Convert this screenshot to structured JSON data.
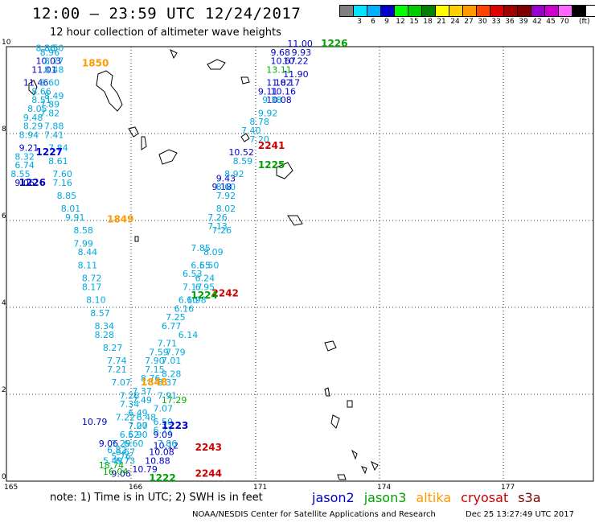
{
  "header": {
    "title": "12:00 — 23:59 UTC 12/24/2017",
    "subtitle": "12 hour collection of altimeter wave heights"
  },
  "legend": {
    "colors": [
      "#808080",
      "#00e5ff",
      "#00b0ff",
      "#0000cc",
      "#00ff00",
      "#00cc00",
      "#008000",
      "#ffff00",
      "#ffd000",
      "#ff9900",
      "#ff4400",
      "#e00000",
      "#a00000",
      "#800000",
      "#9900cc",
      "#cc00cc",
      "#ff66ff",
      "#000000"
    ],
    "labels": [
      "3",
      "6",
      "9",
      "12",
      "15",
      "18",
      "21",
      "24",
      "27",
      "30",
      "33",
      "36",
      "39",
      "42",
      "45",
      "70"
    ],
    "unit": "(ft)"
  },
  "map": {
    "lon_ticks": [
      "165",
      "166",
      "171",
      "174",
      "177"
    ],
    "lat_ticks": [
      "0",
      "2",
      "4",
      "6",
      "8",
      "10"
    ],
    "lon_range": [
      165,
      179
    ],
    "lat_range": [
      0,
      10
    ]
  },
  "chart_data": {
    "type": "scatter",
    "title": "12:00 — 23:59 UTC 12/24/2017",
    "subtitle": "12 hour collection of altimeter wave heights",
    "x_axis": "longitude",
    "y_axis": "latitude",
    "units": "ft",
    "time_labels": [
      {
        "text": "1226",
        "sat": "jason3",
        "lon": 172.5,
        "lat": 10.0
      },
      {
        "text": "1850",
        "sat": "altika",
        "lon": 166.8,
        "lat": 9.55
      },
      {
        "text": "1227",
        "sat": "jason2",
        "lon": 165.7,
        "lat": 7.5
      },
      {
        "text": "1226",
        "sat": "jason2",
        "lon": 165.3,
        "lat": 6.8
      },
      {
        "text": "2241",
        "sat": "cryosat",
        "lon": 171.0,
        "lat": 7.65
      },
      {
        "text": "1225",
        "sat": "jason3",
        "lon": 171.0,
        "lat": 7.2
      },
      {
        "text": "1849",
        "sat": "altika",
        "lon": 167.4,
        "lat": 5.95
      },
      {
        "text": "2242",
        "sat": "cryosat",
        "lon": 169.9,
        "lat": 4.25
      },
      {
        "text": "1224",
        "sat": "jason3",
        "lon": 169.4,
        "lat": 4.2
      },
      {
        "text": "1848",
        "sat": "altika",
        "lon": 168.2,
        "lat": 2.2
      },
      {
        "text": "1223",
        "sat": "jason2",
        "lon": 168.7,
        "lat": 1.2
      },
      {
        "text": "2243",
        "sat": "cryosat",
        "lon": 169.5,
        "lat": 0.7
      },
      {
        "text": "2244",
        "sat": "cryosat",
        "lon": 169.5,
        "lat": 0.1
      },
      {
        "text": "1222",
        "sat": "jason3",
        "lon": 168.4,
        "lat": 0.0
      }
    ],
    "tracks": [
      {
        "name": "jason2",
        "color": "#0000cc",
        "points": [
          [
            "9.21",
            165.3,
            7.6
          ],
          [
            "9.06",
            165.2,
            6.8
          ],
          [
            "10.03",
            165.7,
            9.6
          ],
          [
            "11.01",
            165.6,
            9.4
          ],
          [
            "11.46",
            165.4,
            9.1
          ],
          [
            "11.00",
            171.7,
            10.0
          ],
          [
            "9.93",
            171.8,
            9.8
          ],
          [
            "9.68",
            171.3,
            9.8
          ],
          [
            "10.67",
            171.3,
            9.6
          ],
          [
            "10.22",
            171.6,
            9.6
          ],
          [
            "11.90",
            171.6,
            9.3
          ],
          [
            "11.82",
            171.2,
            9.1
          ],
          [
            "10.17",
            171.4,
            9.1
          ],
          [
            "9.11",
            171.0,
            8.9
          ],
          [
            "10.16",
            171.3,
            8.9
          ],
          [
            "10.08",
            171.2,
            8.7
          ],
          [
            "10.52",
            170.3,
            7.5
          ],
          [
            "9.43",
            170.0,
            6.9
          ],
          [
            "9.18",
            169.9,
            6.7
          ],
          [
            "10.79",
            166.8,
            1.3
          ],
          [
            "9.06",
            167.2,
            0.8
          ],
          [
            "9.09",
            168.5,
            1.0
          ],
          [
            "10.12",
            168.5,
            0.75
          ],
          [
            "10.08",
            168.4,
            0.6
          ],
          [
            "10.88",
            168.3,
            0.4
          ],
          [
            "10.79",
            168.0,
            0.2
          ],
          [
            "9.06",
            167.5,
            0.1
          ]
        ]
      },
      {
        "name": "jason3",
        "color": "#00b000",
        "points": [
          [
            "13.11",
            171.2,
            9.4
          ],
          [
            "17.29",
            168.7,
            1.8
          ],
          [
            "18.74",
            167.2,
            0.3
          ],
          [
            "16.04",
            167.3,
            0.15
          ]
        ]
      },
      {
        "name": "altika",
        "color": "#00a8e0",
        "points": [
          [
            "8.86",
            165.7,
            9.9
          ],
          [
            "8.50",
            165.9,
            9.9
          ],
          [
            "8.96",
            165.8,
            9.8
          ],
          [
            "8.77",
            165.9,
            9.6
          ],
          [
            "8.48",
            165.9,
            9.4
          ],
          [
            "8.60",
            165.8,
            9.1
          ],
          [
            "8.66",
            165.6,
            8.9
          ],
          [
            "8.49",
            165.9,
            8.8
          ],
          [
            "8.51",
            165.6,
            8.7
          ],
          [
            "7.89",
            165.8,
            8.6
          ],
          [
            "8.05",
            165.5,
            8.5
          ],
          [
            "7.82",
            165.8,
            8.4
          ],
          [
            "9.48",
            165.4,
            8.3
          ],
          [
            "7.88",
            165.9,
            8.1
          ],
          [
            "8.29",
            165.4,
            8.1
          ],
          [
            "7.41",
            165.9,
            7.9
          ],
          [
            "8.94",
            165.3,
            7.9
          ],
          [
            "7.84",
            166.0,
            7.6
          ],
          [
            "8.32",
            165.2,
            7.4
          ],
          [
            "8.61",
            166.0,
            7.3
          ],
          [
            "6.74",
            165.2,
            7.2
          ],
          [
            "7.60",
            166.1,
            7.0
          ],
          [
            "8.55",
            165.1,
            7.0
          ],
          [
            "7.16",
            166.1,
            6.8
          ],
          [
            "8.85",
            166.2,
            6.5
          ],
          [
            "8.01",
            166.3,
            6.2
          ],
          [
            "9.91",
            166.4,
            6.0
          ],
          [
            "8.58",
            166.6,
            5.7
          ],
          [
            "7.99",
            166.6,
            5.4
          ],
          [
            "8.44",
            166.7,
            5.2
          ],
          [
            "8.11",
            166.7,
            4.9
          ],
          [
            "8.72",
            166.8,
            4.6
          ],
          [
            "8.17",
            166.8,
            4.4
          ],
          [
            "8.10",
            166.9,
            4.1
          ],
          [
            "8.57",
            167.0,
            3.8
          ],
          [
            "8.34",
            167.1,
            3.5
          ],
          [
            "8.28",
            167.1,
            3.3
          ],
          [
            "8.27",
            167.3,
            3.0
          ],
          [
            "7.74",
            167.4,
            2.7
          ],
          [
            "7.21",
            167.4,
            2.5
          ],
          [
            "7.07",
            167.5,
            2.2
          ],
          [
            "7.26",
            167.7,
            1.9
          ],
          [
            "7.34",
            167.7,
            1.7
          ],
          [
            "7.22",
            167.6,
            1.4
          ],
          [
            "7.07",
            167.9,
            1.2
          ],
          [
            "6.52",
            167.7,
            1.0
          ],
          [
            "7.29",
            167.5,
            0.8
          ],
          [
            "6.82",
            167.4,
            0.65
          ],
          [
            "6.73",
            167.6,
            0.4
          ],
          [
            "9.38",
            171.1,
            8.7
          ],
          [
            "9.92",
            171.0,
            8.4
          ],
          [
            "8.78",
            170.8,
            8.2
          ],
          [
            "7.40",
            170.6,
            8.0
          ],
          [
            "7.20",
            170.8,
            7.8
          ],
          [
            "8.59",
            170.4,
            7.3
          ],
          [
            "8.92",
            170.2,
            7.0
          ],
          [
            "8.60",
            170.0,
            6.7
          ],
          [
            "7.92",
            170.0,
            6.5
          ],
          [
            "8.02",
            170.0,
            6.2
          ],
          [
            "7.26",
            169.8,
            6.0
          ],
          [
            "7.13",
            169.8,
            5.8
          ],
          [
            "7.26",
            169.9,
            5.7
          ],
          [
            "7.85",
            169.4,
            5.3
          ],
          [
            "8.09",
            169.7,
            5.2
          ],
          [
            "6.55",
            169.4,
            4.9
          ],
          [
            "6.50",
            169.6,
            4.9
          ],
          [
            "6.53",
            169.2,
            4.7
          ],
          [
            "6.24",
            169.5,
            4.6
          ],
          [
            "7.17",
            169.2,
            4.4
          ],
          [
            "6.95",
            169.5,
            4.4
          ],
          [
            "6.10",
            169.1,
            4.1
          ],
          [
            "6.98",
            169.3,
            4.1
          ],
          [
            "6.16",
            169.0,
            3.9
          ],
          [
            "7.25",
            168.8,
            3.7
          ],
          [
            "6.77",
            168.7,
            3.5
          ],
          [
            "6.14",
            169.1,
            3.3
          ],
          [
            "7.71",
            168.6,
            3.1
          ],
          [
            "7.59",
            168.4,
            2.9
          ],
          [
            "7.79",
            168.8,
            2.9
          ],
          [
            "7.90",
            168.3,
            2.7
          ],
          [
            "7.01",
            168.7,
            2.7
          ],
          [
            "7.15",
            168.3,
            2.5
          ],
          [
            "8.28",
            168.7,
            2.4
          ],
          [
            "8.76",
            168.2,
            2.3
          ],
          [
            "8.37",
            168.6,
            2.2
          ],
          [
            "7.37",
            168.0,
            2.0
          ],
          [
            "7.91",
            168.6,
            1.9
          ],
          [
            "7.49",
            168.0,
            1.8
          ],
          [
            "7.07",
            168.5,
            1.6
          ],
          [
            "6.49",
            167.9,
            1.5
          ],
          [
            "6.48",
            168.1,
            1.4
          ],
          [
            "6.50",
            168.5,
            1.3
          ],
          [
            "7.20",
            167.9,
            1.2
          ],
          [
            "6.71",
            168.5,
            1.1
          ],
          [
            "6.90",
            167.9,
            1.0
          ],
          [
            "6.60",
            167.8,
            0.8
          ],
          [
            "7.86",
            168.6,
            0.8
          ],
          [
            "6.67",
            167.6,
            0.6
          ],
          [
            "5.76",
            167.5,
            0.5
          ],
          [
            "5.49",
            167.3,
            0.4
          ]
        ]
      }
    ]
  },
  "footer": {
    "note": "note: 1) Time is in UTC; 2) SWH is in feet",
    "satellites": [
      {
        "name": "jason2",
        "color": "#0000cc"
      },
      {
        "name": "jason3",
        "color": "#00a000"
      },
      {
        "name": "altika",
        "color": "#ff9900"
      },
      {
        "name": "cryosat",
        "color": "#cc0000"
      },
      {
        "name": "s3a",
        "color": "#800000"
      }
    ],
    "credit": "NOAA/NESDIS Center for Satellite Applications and Research",
    "generated": "Dec 25 13:27:49 UTC 2017"
  }
}
